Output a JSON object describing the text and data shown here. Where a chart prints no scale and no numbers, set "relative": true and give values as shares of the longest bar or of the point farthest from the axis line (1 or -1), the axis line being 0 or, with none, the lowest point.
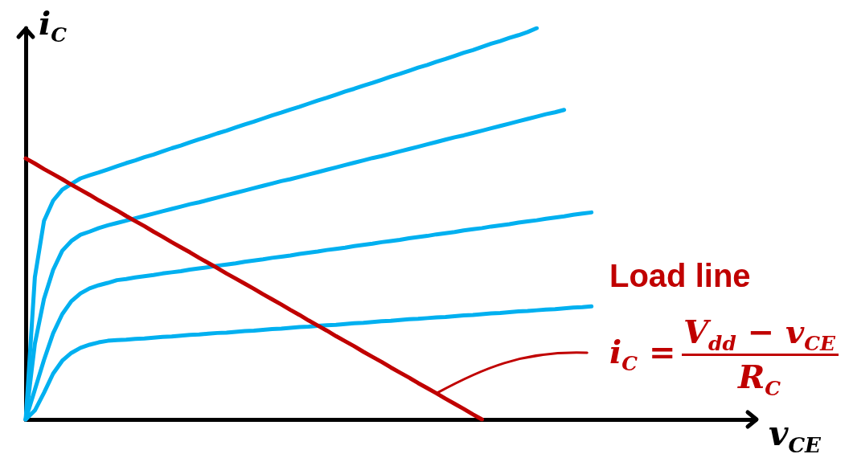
{
  "chart_data": {
    "type": "line",
    "relative": true,
    "xlabel": "v$_{CE}$",
    "ylabel": "i$_{C}$",
    "marker": "none",
    "categories": [
      null,
      null,
      null,
      null,
      null,
      null,
      null,
      null,
      null,
      null,
      null,
      null,
      null,
      null,
      null,
      null,
      null,
      null,
      null,
      null,
      null,
      null,
      null,
      null,
      null,
      null,
      null,
      null,
      null,
      null,
      null,
      null,
      null,
      null,
      null,
      null,
      null,
      null,
      null,
      null,
      null,
      null,
      null,
      null,
      null,
      null,
      null,
      null,
      null,
      null,
      null,
      null,
      null,
      null,
      null,
      null,
      null,
      null,
      null,
      null,
      null,
      null,
      null,
      null,
      null,
      null,
      null,
      null,
      null,
      null,
      null,
      null,
      null,
      null,
      null,
      null,
      null,
      null,
      null,
      null,
      null
    ],
    "series": [
      {
        "color": "#00b0f0",
        "values": [
          0,
          0.363,
          0.507,
          0.559,
          0.587,
          0.602,
          0.616,
          0.624,
          0.631,
          0.639,
          0.647,
          0.655,
          0.662,
          0.67,
          0.677,
          0.685,
          0.693,
          0.7,
          0.708,
          0.716,
          0.723,
          0.731,
          0.738,
          0.746,
          0.754,
          0.761,
          0.769,
          0.777,
          0.784,
          0.792,
          0.799,
          0.807,
          0.815,
          0.822,
          0.83,
          0.838,
          0.845,
          0.853,
          0.86,
          0.868,
          0.876,
          0.883,
          0.891,
          0.899,
          0.906,
          0.914,
          0.921,
          0.929,
          0.937,
          0.944,
          0.952,
          0.96,
          0.967,
          0.975,
          0.982,
          0.99,
          1,
          null,
          null,
          null,
          null,
          null,
          null,
          null,
          null,
          null,
          null,
          null,
          null,
          null,
          null,
          null,
          null,
          null,
          null,
          null,
          null,
          null,
          null,
          null,
          null
        ]
      },
      {
        "color": "#00b0f0",
        "values": [
          0,
          0.193,
          0.308,
          0.382,
          0.431,
          0.456,
          0.472,
          0.48,
          0.489,
          0.496,
          0.502,
          0.508,
          0.514,
          0.52,
          0.526,
          0.532,
          0.538,
          0.544,
          0.55,
          0.555,
          0.561,
          0.567,
          0.573,
          0.579,
          0.585,
          0.591,
          0.597,
          0.603,
          0.609,
          0.614,
          0.62,
          0.626,
          0.632,
          0.638,
          0.644,
          0.65,
          0.656,
          0.662,
          0.668,
          0.673,
          0.679,
          0.685,
          0.691,
          0.697,
          0.703,
          0.709,
          0.715,
          0.721,
          0.726,
          0.732,
          0.738,
          0.744,
          0.75,
          0.756,
          0.762,
          0.768,
          0.774,
          0.78,
          0.785,
          0.791,
          null,
          null,
          null,
          null,
          null,
          null,
          null,
          null,
          null,
          null,
          null,
          null,
          null,
          null,
          null,
          null,
          null,
          null,
          null,
          null,
          null
        ]
      },
      {
        "color": "#00b0f0",
        "values": [
          0,
          0.076,
          0.152,
          0.22,
          0.269,
          0.302,
          0.322,
          0.335,
          0.343,
          0.349,
          0.356,
          0.359,
          0.363,
          0.366,
          0.369,
          0.373,
          0.376,
          0.379,
          0.383,
          0.386,
          0.389,
          0.393,
          0.396,
          0.399,
          0.403,
          0.406,
          0.409,
          0.413,
          0.416,
          0.419,
          0.423,
          0.426,
          0.429,
          0.433,
          0.436,
          0.439,
          0.443,
          0.446,
          0.449,
          0.453,
          0.456,
          0.459,
          0.463,
          0.466,
          0.469,
          0.473,
          0.476,
          0.479,
          0.483,
          0.486,
          0.489,
          0.493,
          0.496,
          0.499,
          0.503,
          0.506,
          0.509,
          0.513,
          0.516,
          0.519,
          0.523,
          0.526,
          0.529,
          null,
          null,
          null,
          null,
          null,
          null,
          null,
          null,
          null,
          null,
          null,
          null,
          null,
          null,
          null,
          null,
          null,
          null
        ]
      },
      {
        "color": "#00b0f0",
        "values": [
          0,
          0.023,
          0.068,
          0.117,
          0.15,
          0.17,
          0.183,
          0.191,
          0.197,
          0.201,
          0.203,
          0.204,
          0.206,
          0.207,
          0.209,
          0.211,
          0.212,
          0.214,
          0.216,
          0.217,
          0.219,
          0.221,
          0.222,
          0.224,
          0.226,
          0.227,
          0.229,
          0.231,
          0.232,
          0.234,
          0.236,
          0.237,
          0.239,
          0.241,
          0.242,
          0.244,
          0.246,
          0.247,
          0.249,
          0.251,
          0.252,
          0.254,
          0.256,
          0.257,
          0.259,
          0.261,
          0.262,
          0.264,
          0.266,
          0.267,
          0.269,
          0.271,
          0.272,
          0.274,
          0.276,
          0.277,
          0.279,
          0.281,
          0.282,
          0.284,
          0.286,
          0.287,
          0.289,
          null,
          null,
          null,
          null,
          null,
          null,
          null,
          null,
          null,
          null,
          null,
          null,
          null,
          null,
          null,
          null,
          null,
          null
        ]
      },
      {
        "name": "Load line",
        "color": "#c00000",
        "values": [
          0.667,
          0.654,
          0.64,
          0.627,
          0.614,
          0.6,
          0.587,
          0.574,
          0.56,
          0.547,
          0.534,
          0.52,
          0.507,
          0.494,
          0.48,
          0.467,
          0.453,
          0.44,
          0.427,
          0.413,
          0.4,
          0.387,
          0.373,
          0.36,
          0.347,
          0.334,
          0.32,
          0.307,
          0.294,
          0.28,
          0.267,
          0.253,
          0.24,
          0.227,
          0.213,
          0.2,
          0.187,
          0.173,
          0.16,
          0.147,
          0.133,
          0.12,
          0.107,
          0.093,
          0.08,
          0.067,
          0.053,
          0.04,
          0.027,
          0.013,
          0,
          null,
          null,
          null,
          null,
          null,
          null,
          null,
          null,
          null,
          null,
          null,
          null,
          null,
          null,
          null,
          null,
          null,
          null,
          null,
          null,
          null,
          null,
          null,
          null,
          null,
          null,
          null,
          null,
          null,
          null
        ]
      }
    ],
    "annotations": [
      "i$_{C}$ =",
      "V$_{dd}$ − v$_{CE}$",
      "R$_{C}$"
    ]
  }
}
